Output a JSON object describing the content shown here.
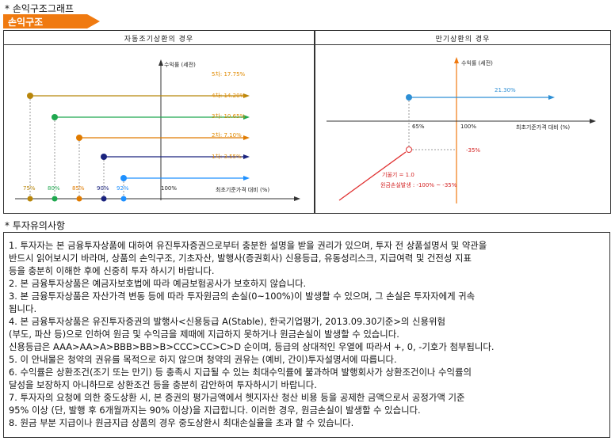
{
  "header": {
    "title": "* 손익구조그래프",
    "tab_label": "손익구조"
  },
  "left_chart": {
    "title": "자동조기상환의 경우",
    "y_label": "수익률 (세전)",
    "x_label": "최초기준가격 대비 (%)",
    "hundred_label": "100%",
    "levels": [
      {
        "label": "5차: 17.75%",
        "color": "#b8860b"
      },
      {
        "label": "4차: 14.20%",
        "color": "#1fa84f"
      },
      {
        "label": "3차: 10.65%",
        "color": "#e07b00"
      },
      {
        "label": "2차: 7.10%",
        "color": "#1a237e"
      },
      {
        "label": "1차: 3.55%",
        "color": "#1e90ff"
      }
    ],
    "x_ticks": [
      {
        "label": "75%",
        "color": "#b8860b"
      },
      {
        "label": "80%",
        "color": "#1fa84f"
      },
      {
        "label": "85%",
        "color": "#e07b00"
      },
      {
        "label": "90%",
        "color": "#1a237e"
      },
      {
        "label": "92%",
        "color": "#1e90ff"
      }
    ]
  },
  "right_chart": {
    "title": "만기상환의 경우",
    "y_label": "수익률 (세전)",
    "x_label": "최초기준가격 대비 (%)",
    "gain_label": "21.30%",
    "tick_65": "65%",
    "tick_100": "100%",
    "loss_label": "-35%",
    "slope_label": "기울기 = 1.0",
    "loss_range_label": "원금손실발생 : -100% ~ -35%"
  },
  "notes": {
    "header": "* 투자유의사항",
    "lines": [
      "1. 투자자는 본 금융투자상품에 대하여 유진투자증권으로부터 충분한 설명을 받을 권리가 있으며, 투자 전 상품설명서 및 약관을",
      "    반드시 읽어보시기 바라며, 상품의 손익구조, 기초자산, 발행사(증권회사) 신용등급, 유동성리스크, 지급여력 및 건전성 지표",
      "    등을 충분히 이해한 후에 신중히 투자 하시기 바랍니다.",
      "2. 본 금융투자상품은 예금자보호법에 따라 예금보험공사가 보호하지 않습니다.",
      "3. 본 금융투자상품은 자산가격 변동 등에 따라 투자원금의 손실(0~100%)이 발생할 수 있으며, 그 손실은 투자자에게 귀속",
      "    됩니다.",
      "4. 본 금융투자상품은 유진투자증권의 발행사<신용등급 A(Stable), 한국기업평가, 2013.09.30기준>의 신용위험",
      "    (부도, 파산 등)으로 인하여 원금 및 수익금을 제때에 지급하지 못하거나 원금손실이 발생할 수 있습니다.",
      "    신용등급은 AAA>AA>A>BBB>BB>B>CCC>CC>C>D 순이며, 등급의 상대적인 우열에 따라서 +, 0, -기호가 첨부됩니다.",
      "5. 이 안내물은 청약의 권유를 목적으로 하지 않으며 청약의 권유는 (예비, 간이)투자설명서에 따릅니다.",
      "6. 수익률은 상환조건(조기 또는 만기) 등 충족시 지급될 수 있는 최대수익률에 불과하며 발행회사가 상환조건이나 수익률의",
      "    달성을 보장하지 아니하므로 상환조건 등을 충분히 감안하여 투자하시기 바랍니다.",
      "7. 투자자의 요청에 의한 중도상환 시, 본 증권의 평가금액에서 헷지자산 청산 비용 등을 공제한 금액으로서 공정가액 기준",
      "    95% 이상 (단, 발행 후 6개월까지는 90% 이상)을 지급합니다. 이러한 경우, 원금손실이 발생할 수 있습니다.",
      "8. 원금 부분 지급이나 원금지급 상품의 경우 중도상환시 최대손실율을 초과 할 수 있습니다."
    ]
  }
}
